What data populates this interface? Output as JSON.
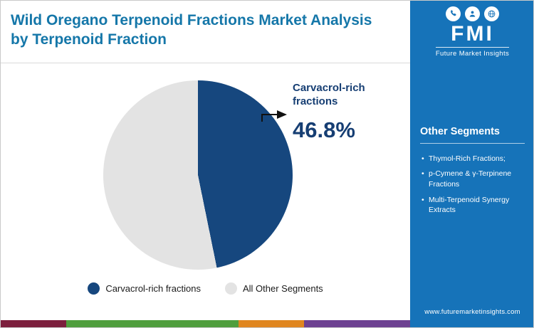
{
  "header": {
    "title": "Wild Oregano Terpenoid Fractions Market Analysis by Terpenoid Fraction"
  },
  "chart_data": {
    "type": "pie",
    "title": "Wild Oregano Terpenoid Fractions Market Analysis by Terpenoid Fraction",
    "slices": [
      {
        "label": "Carvacrol-rich fractions",
        "value": 46.8,
        "color": "#16477e"
      },
      {
        "label": "All Other Segments",
        "value": 53.2,
        "color": "#e3e3e3"
      }
    ],
    "start_angle_deg": 0,
    "annotation": {
      "label": "Carvacrol-rich fractions",
      "value_text": "46.8%"
    },
    "legend_position": "bottom"
  },
  "legend": {
    "items": [
      {
        "label": "Carvacrol-rich fractions",
        "color": "#16477e"
      },
      {
        "label": "All Other Segments",
        "color": "#e3e3e3"
      }
    ]
  },
  "sidebar": {
    "logo": {
      "abbr": "FMI",
      "name": "Future Market Insights",
      "icons": [
        "phone-icon",
        "analyst-icon",
        "globe-icon"
      ]
    },
    "panel": {
      "heading": "Other Segments",
      "items": [
        "Thymol-Rich Fractions;",
        "p-Cymene & γ-Terpinene Fractions",
        "Multi-Terpenoid Synergy Extracts"
      ]
    },
    "website": "www.futuremarketinsights.com",
    "bg_color": "#1673b9"
  },
  "footer_strip": {
    "segments": [
      {
        "color": "#7c1f3d",
        "width_pct": 16
      },
      {
        "color": "#4f9e3d",
        "width_pct": 42
      },
      {
        "color": "#e0861f",
        "width_pct": 16
      },
      {
        "color": "#6d4191",
        "width_pct": 26
      }
    ]
  },
  "colors": {
    "title": "#1577a9",
    "annotation": "#163e73",
    "divider": "#d9d9d9"
  }
}
